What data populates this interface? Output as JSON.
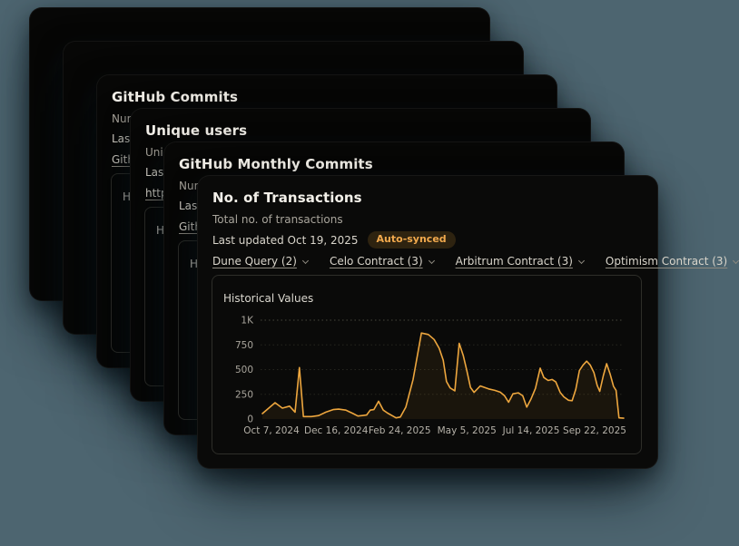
{
  "page": {
    "background_color": "#4d6570",
    "card_color": "#0a0a09",
    "accent_color": "#eda63e"
  },
  "cards": [
    {
      "title": ""
    },
    {
      "title": ""
    },
    {
      "title": "GitHub Commits",
      "line1": "Num",
      "line2": "Last",
      "link": "Gith",
      "panel_label": "H"
    },
    {
      "title": "Unique users",
      "line1": "Uniq",
      "line2": "Last",
      "link": "http",
      "panel_label": "H"
    },
    {
      "title": "GitHub Monthly Commits",
      "line1": "Num",
      "line2": "Last",
      "link": "Githu",
      "panel_label": "H"
    },
    {
      "title": "No. of Transactions",
      "subtitle": "Total no. of transactions",
      "last_updated": "Last updated Oct 19, 2025",
      "badge": "Auto-synced",
      "tabs": [
        {
          "label": "Dune Query (2)"
        },
        {
          "label": "Celo Contract (3)"
        },
        {
          "label": "Arbitrum Contract (3)"
        },
        {
          "label": "Optimism Contract (3)"
        }
      ],
      "panel_label": "Historical Values"
    }
  ],
  "chart_data": {
    "type": "line",
    "title": "Historical Values",
    "ylabel": "",
    "xlabel": "",
    "ylim": [
      0,
      1000
    ],
    "grid": "dashed-horizontal",
    "legend_position": "none",
    "line_color": "#eda63e",
    "fill_color": "rgba(237,166,62,0.07)",
    "y_ticks": [
      {
        "label": "0",
        "value": 0
      },
      {
        "label": "250",
        "value": 250
      },
      {
        "label": "500",
        "value": 500
      },
      {
        "label": "750",
        "value": 750
      },
      {
        "label": "1K",
        "value": 1000
      }
    ],
    "x_ticks": [
      {
        "label": "Oct 7, 2024",
        "pos": 0.03
      },
      {
        "label": "Dec 16, 2024",
        "pos": 0.208
      },
      {
        "label": "Feb 24, 2025",
        "pos": 0.383
      },
      {
        "label": "May 5, 2025",
        "pos": 0.568
      },
      {
        "label": "Jul 14, 2025",
        "pos": 0.745
      },
      {
        "label": "Sep 22, 2025",
        "pos": 0.92
      }
    ],
    "series": [
      {
        "name": "No. of Transactions",
        "points": [
          [
            0.005,
            55
          ],
          [
            0.04,
            165
          ],
          [
            0.06,
            110
          ],
          [
            0.08,
            130
          ],
          [
            0.095,
            70
          ],
          [
            0.107,
            520
          ],
          [
            0.118,
            25
          ],
          [
            0.14,
            25
          ],
          [
            0.16,
            35
          ],
          [
            0.18,
            70
          ],
          [
            0.2,
            95
          ],
          [
            0.215,
            100
          ],
          [
            0.235,
            90
          ],
          [
            0.255,
            55
          ],
          [
            0.268,
            30
          ],
          [
            0.28,
            35
          ],
          [
            0.292,
            40
          ],
          [
            0.302,
            90
          ],
          [
            0.312,
            95
          ],
          [
            0.325,
            180
          ],
          [
            0.338,
            90
          ],
          [
            0.35,
            60
          ],
          [
            0.362,
            35
          ],
          [
            0.373,
            12
          ],
          [
            0.385,
            20
          ],
          [
            0.4,
            120
          ],
          [
            0.42,
            400
          ],
          [
            0.443,
            870
          ],
          [
            0.462,
            855
          ],
          [
            0.478,
            805
          ],
          [
            0.492,
            715
          ],
          [
            0.503,
            595
          ],
          [
            0.512,
            380
          ],
          [
            0.522,
            315
          ],
          [
            0.535,
            285
          ],
          [
            0.547,
            765
          ],
          [
            0.558,
            645
          ],
          [
            0.568,
            490
          ],
          [
            0.578,
            320
          ],
          [
            0.588,
            270
          ],
          [
            0.605,
            335
          ],
          [
            0.628,
            305
          ],
          [
            0.645,
            290
          ],
          [
            0.66,
            272
          ],
          [
            0.672,
            235
          ],
          [
            0.683,
            170
          ],
          [
            0.695,
            255
          ],
          [
            0.71,
            265
          ],
          [
            0.722,
            235
          ],
          [
            0.733,
            120
          ],
          [
            0.745,
            205
          ],
          [
            0.757,
            310
          ],
          [
            0.77,
            515
          ],
          [
            0.78,
            420
          ],
          [
            0.792,
            390
          ],
          [
            0.803,
            400
          ],
          [
            0.813,
            375
          ],
          [
            0.825,
            270
          ],
          [
            0.835,
            225
          ],
          [
            0.848,
            190
          ],
          [
            0.858,
            185
          ],
          [
            0.868,
            300
          ],
          [
            0.878,
            490
          ],
          [
            0.888,
            545
          ],
          [
            0.898,
            585
          ],
          [
            0.908,
            545
          ],
          [
            0.918,
            470
          ],
          [
            0.927,
            340
          ],
          [
            0.934,
            280
          ],
          [
            0.944,
            440
          ],
          [
            0.953,
            560
          ],
          [
            0.963,
            450
          ],
          [
            0.972,
            330
          ],
          [
            0.979,
            290
          ],
          [
            0.987,
            12
          ],
          [
            1.0,
            8
          ]
        ]
      }
    ]
  }
}
